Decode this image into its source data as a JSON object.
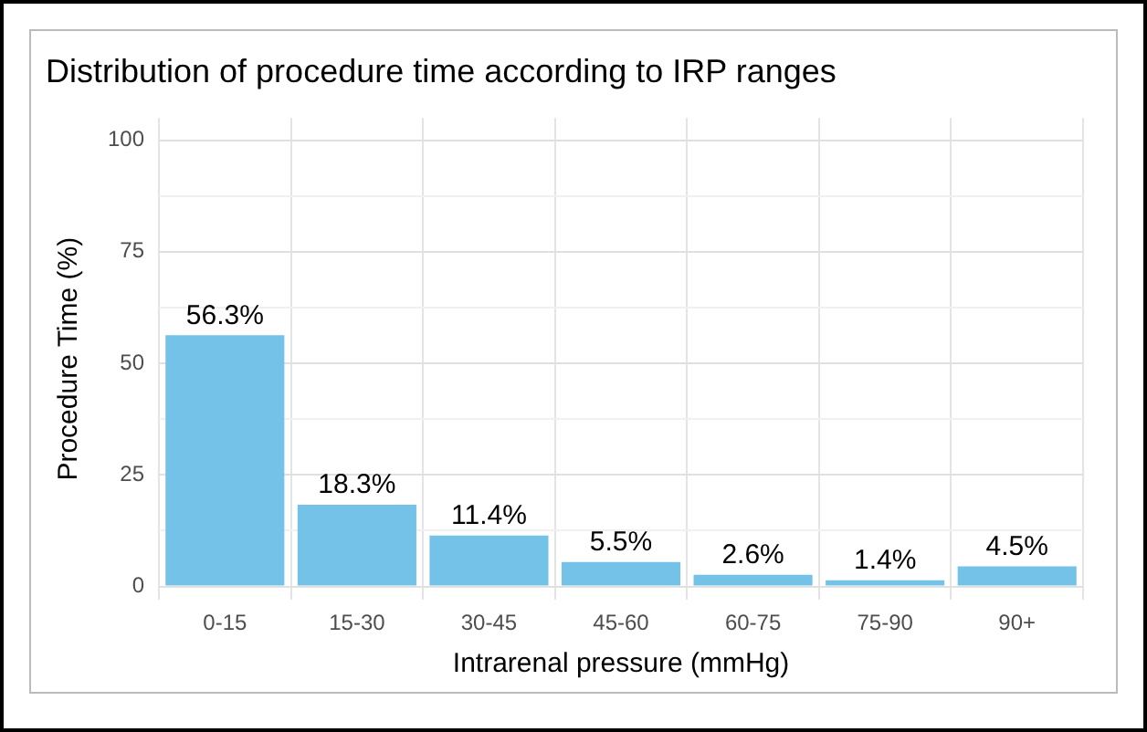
{
  "chart_data": {
    "type": "bar",
    "title": "Distribution of procedure time according to IRP ranges",
    "xlabel": "Intrarenal pressure (mmHg)",
    "ylabel": "Procedure Time (%)",
    "categories": [
      "0-15",
      "15-30",
      "30-45",
      "45-60",
      "60-75",
      "75-90",
      "90+"
    ],
    "values": [
      56.3,
      18.3,
      11.4,
      5.5,
      2.6,
      1.4,
      4.5
    ],
    "value_labels": [
      "56.3%",
      "18.3%",
      "11.4%",
      "5.5%",
      "2.6%",
      "1.4%",
      "4.5%"
    ],
    "color": "#74c2e8",
    "ylim": [
      -3,
      105
    ],
    "yticks": [
      0,
      {
        "value": 12.5,
        "label": null
      },
      25,
      {
        "value": 37.5,
        "label": null
      },
      50,
      {
        "value": 62.5,
        "label": null
      },
      75,
      {
        "value": 87.5,
        "label": null
      },
      100
    ],
    "grid": true,
    "legend": false
  }
}
